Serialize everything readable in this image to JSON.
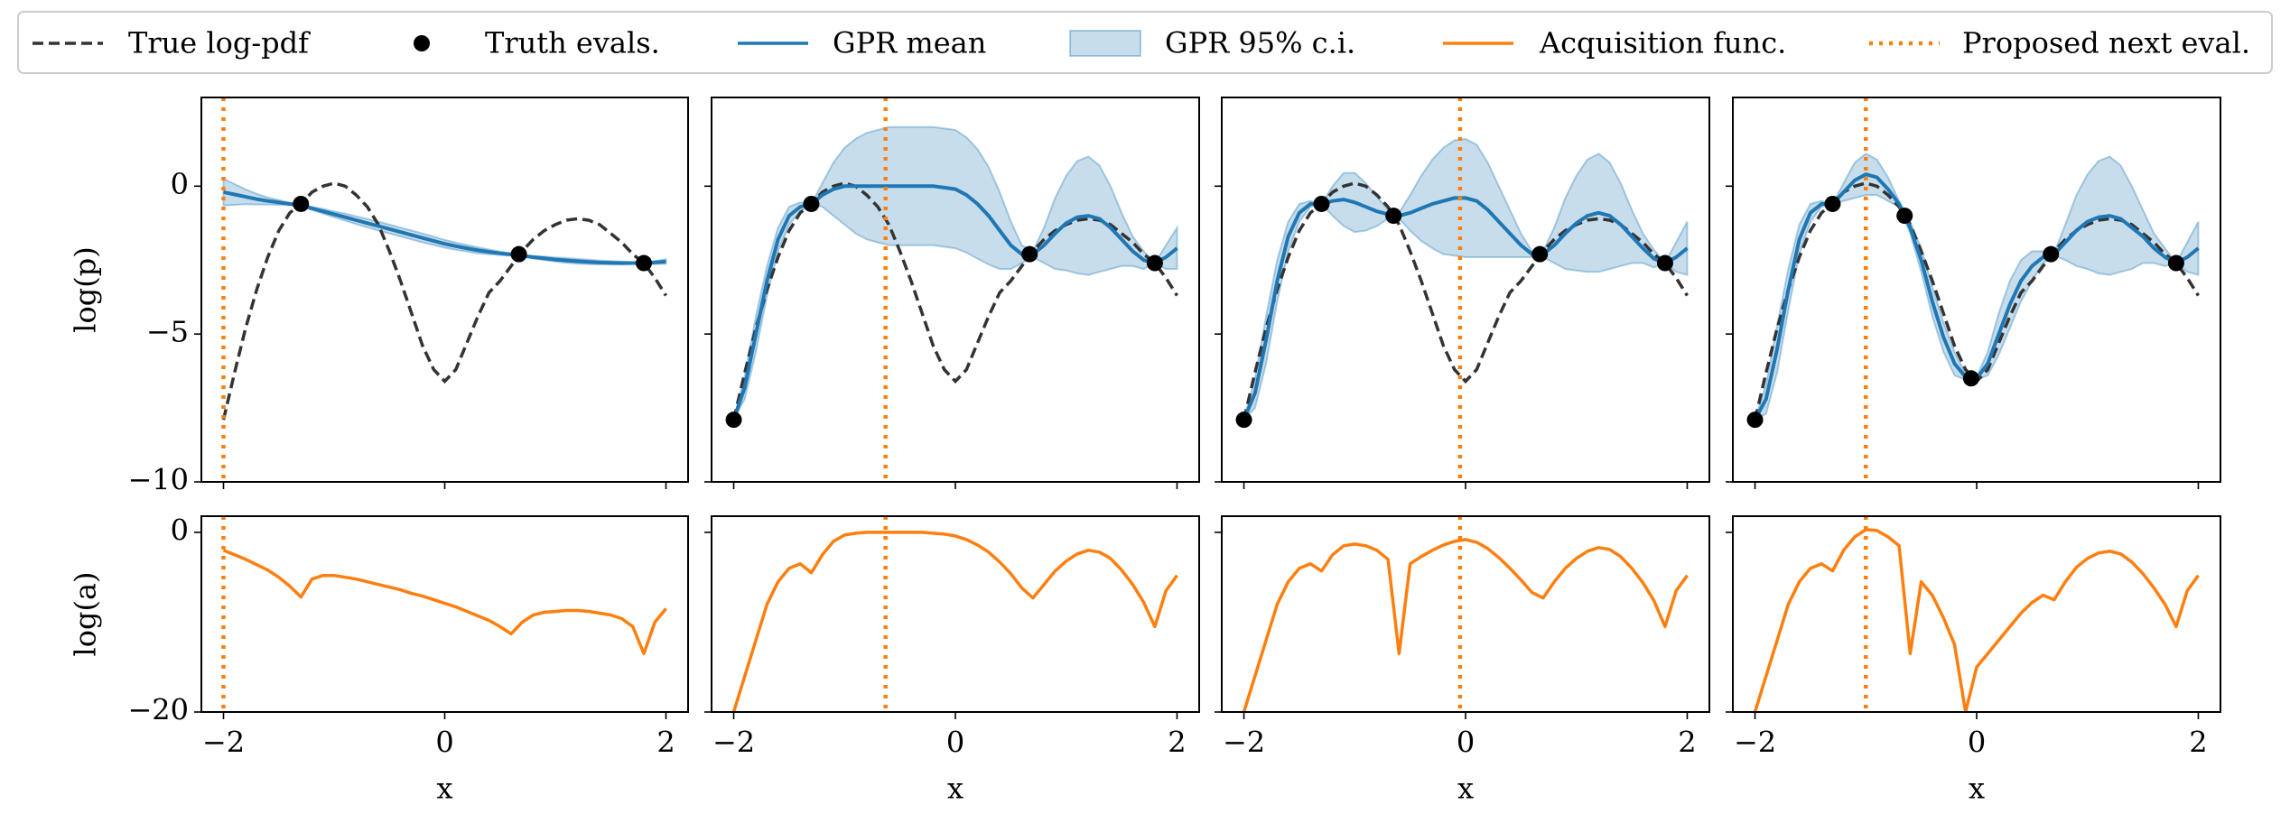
{
  "chart_data": {
    "type": "bayes-opt-grid",
    "legend": [
      {
        "name": "True log-pdf",
        "color": "#333333",
        "style": "dashed"
      },
      {
        "name": "Truth evals.",
        "color": "#000000",
        "style": "dot"
      },
      {
        "name": "GPR mean",
        "color": "#1f77b4",
        "style": "line"
      },
      {
        "name": "GPR 95% c.i.",
        "color": "#1f77b4",
        "style": "patch"
      },
      {
        "name": "Acquisition func.",
        "color": "#ff7f0e",
        "style": "line"
      },
      {
        "name": "Proposed next eval.",
        "color": "#ff7f0e",
        "style": "dotted"
      }
    ],
    "xlabel": "x",
    "xlim": [
      -2.2,
      2.2
    ],
    "xticks": [
      {
        "value": -2,
        "label": "−2"
      },
      0,
      2
    ],
    "top": {
      "ylabel": "log(p)",
      "ylim": [
        -10,
        3
      ],
      "yticks": [
        {
          "value": -10,
          "label": "−10"
        },
        {
          "value": -5,
          "label": "−5"
        },
        0
      ]
    },
    "bottom": {
      "ylabel": "log(a)",
      "ylim": [
        -20,
        1.8
      ],
      "yticks": [
        {
          "value": -20,
          "label": "−20"
        },
        0
      ]
    },
    "x": [
      -2,
      -1.9,
      -1.8,
      -1.7,
      -1.6,
      -1.5,
      -1.4,
      -1.3,
      -1.2,
      -1.1,
      -1,
      -0.9,
      -0.8,
      -0.7,
      -0.6,
      -0.5,
      -0.4,
      -0.3,
      -0.2,
      -0.1,
      0,
      0.1,
      0.2,
      0.3,
      0.4,
      0.5,
      0.6,
      0.7,
      0.8,
      0.9,
      1,
      1.1,
      1.2,
      1.3,
      1.4,
      1.5,
      1.6,
      1.7,
      1.8,
      1.9,
      2
    ],
    "true_logpdf": [
      -7.9,
      -6.3,
      -4.8,
      -3.5,
      -2.4,
      -1.5,
      -0.9,
      -0.6,
      -0.2,
      0,
      0.1,
      0,
      -0.3,
      -0.7,
      -1.3,
      -2.2,
      -3.2,
      -4.3,
      -5.4,
      -6.2,
      -6.6,
      -6.2,
      -5.3,
      -4.4,
      -3.6,
      -3.2,
      -2.7,
      -2.2,
      -1.8,
      -1.5,
      -1.3,
      -1.15,
      -1.1,
      -1.15,
      -1.3,
      -1.6,
      -1.9,
      -2.3,
      -2.6,
      -3.1,
      -3.7
    ],
    "panels": [
      {
        "evals_x": [
          -1.3,
          0.67,
          1.8
        ],
        "evals_y": [
          -0.6,
          -2.3,
          -2.6
        ],
        "next_x": -2,
        "gpr_mean": [
          -0.2,
          -0.28,
          -0.36,
          -0.44,
          -0.5,
          -0.55,
          -0.6,
          -0.65,
          -0.75,
          -0.85,
          -0.95,
          -1.05,
          -1.15,
          -1.25,
          -1.35,
          -1.45,
          -1.55,
          -1.65,
          -1.75,
          -1.85,
          -1.95,
          -2.03,
          -2.1,
          -2.17,
          -2.22,
          -2.27,
          -2.31,
          -2.35,
          -2.4,
          -2.44,
          -2.48,
          -2.51,
          -2.54,
          -2.56,
          -2.58,
          -2.59,
          -2.6,
          -2.6,
          -2.6,
          -2.58,
          -2.55
        ],
        "gpr_ci_halfwidth": [
          0.45,
          0.35,
          0.25,
          0.18,
          0.12,
          0.08,
          0.04,
          0.02,
          0.05,
          0.08,
          0.1,
          0.12,
          0.13,
          0.14,
          0.15,
          0.15,
          0.15,
          0.15,
          0.15,
          0.14,
          0.13,
          0.12,
          0.11,
          0.1,
          0.08,
          0.06,
          0.04,
          0.02,
          0.04,
          0.06,
          0.07,
          0.08,
          0.08,
          0.08,
          0.07,
          0.06,
          0.05,
          0.03,
          0.02,
          0.05,
          0.08
        ],
        "acquisition": [
          -2,
          -2.5,
          -3,
          -3.6,
          -4.2,
          -5,
          -6,
          -7.2,
          -5.2,
          -4.8,
          -4.8,
          -5,
          -5.2,
          -5.5,
          -5.8,
          -6.1,
          -6.4,
          -6.8,
          -7.1,
          -7.5,
          -7.9,
          -8.3,
          -8.8,
          -9.3,
          -9.8,
          -10.5,
          -11.3,
          -10,
          -9.2,
          -8.9,
          -8.8,
          -8.7,
          -8.7,
          -8.8,
          -9,
          -9.2,
          -9.6,
          -10.5,
          -13.5,
          -10,
          -8.5
        ]
      },
      {
        "evals_x": [
          -2,
          -1.3,
          0.67,
          1.8
        ],
        "evals_y": [
          -7.9,
          -0.6,
          -2.3,
          -2.6
        ],
        "next_x": -0.63,
        "gpr_mean": [
          -7.9,
          -6.8,
          -5,
          -3.2,
          -1.8,
          -1,
          -0.7,
          -0.6,
          -0.3,
          -0.1,
          0,
          0,
          0,
          0,
          0,
          0,
          0,
          0,
          0,
          -0.05,
          -0.1,
          -0.3,
          -0.6,
          -1,
          -1.5,
          -2,
          -2.3,
          -2.3,
          -2,
          -1.6,
          -1.25,
          -1.05,
          -1,
          -1.1,
          -1.4,
          -1.8,
          -2.2,
          -2.5,
          -2.6,
          -2.4,
          -2.1
        ],
        "gpr_ci_halfwidth": [
          0,
          0.4,
          0.6,
          0.5,
          0.4,
          0.3,
          0.15,
          0,
          0.4,
          0.9,
          1.3,
          1.6,
          1.8,
          1.9,
          2,
          2,
          2,
          2,
          2,
          2,
          2,
          1.95,
          1.85,
          1.65,
          1.3,
          0.8,
          0.3,
          0.1,
          0.6,
          1.2,
          1.6,
          1.9,
          2,
          1.8,
          1.4,
          0.9,
          0.5,
          0.3,
          0,
          0.4,
          0.7
        ],
        "acquisition": [
          -20,
          -16,
          -12,
          -8,
          -5.5,
          -4,
          -3.5,
          -4.5,
          -2.5,
          -1,
          -0.3,
          -0.1,
          0,
          0,
          0,
          0,
          0,
          0,
          -0.1,
          -0.2,
          -0.4,
          -0.8,
          -1.4,
          -2.2,
          -3.3,
          -4.6,
          -6.2,
          -7.3,
          -5.8,
          -4.3,
          -3.2,
          -2.4,
          -2,
          -2.2,
          -2.9,
          -4.2,
          -5.8,
          -7.8,
          -10.5,
          -6.5,
          -4.8
        ]
      },
      {
        "evals_x": [
          -2,
          -1.3,
          -0.65,
          0.67,
          1.8
        ],
        "evals_y": [
          -7.9,
          -0.6,
          -1,
          -2.3,
          -2.6
        ],
        "next_x": -0.05,
        "gpr_mean": [
          -7.9,
          -7,
          -5.2,
          -3.2,
          -1.7,
          -0.9,
          -0.6,
          -0.6,
          -0.5,
          -0.45,
          -0.55,
          -0.7,
          -0.85,
          -0.95,
          -1,
          -0.9,
          -0.75,
          -0.6,
          -0.5,
          -0.4,
          -0.4,
          -0.5,
          -0.8,
          -1.2,
          -1.6,
          -2,
          -2.3,
          -2.3,
          -2,
          -1.6,
          -1.25,
          -1,
          -0.9,
          -1,
          -1.3,
          -1.7,
          -2.1,
          -2.45,
          -2.6,
          -2.4,
          -2.1
        ],
        "gpr_ci_halfwidth": [
          0,
          0.5,
          0.8,
          0.7,
          0.5,
          0.3,
          0.1,
          0,
          0.5,
          0.9,
          1,
          0.8,
          0.5,
          0.15,
          0.1,
          0.6,
          1.1,
          1.5,
          1.8,
          1.95,
          2,
          1.9,
          1.6,
          1.2,
          0.8,
          0.4,
          0.1,
          0.1,
          0.6,
          1.2,
          1.6,
          1.9,
          2,
          1.8,
          1.4,
          0.9,
          0.5,
          0.3,
          0,
          0.5,
          0.9
        ],
        "acquisition": [
          -20,
          -16,
          -12,
          -8,
          -5.5,
          -4,
          -3.5,
          -4.3,
          -2.5,
          -1.5,
          -1.3,
          -1.5,
          -2,
          -3,
          -13.5,
          -3.5,
          -2.7,
          -2,
          -1.4,
          -1,
          -0.8,
          -1.1,
          -1.8,
          -2.8,
          -4,
          -5.3,
          -6.7,
          -7.3,
          -5.5,
          -4,
          -2.9,
          -2.1,
          -1.7,
          -1.9,
          -2.7,
          -4,
          -5.6,
          -7.6,
          -10.5,
          -6.5,
          -4.8
        ]
      },
      {
        "evals_x": [
          -2,
          -1.3,
          -0.65,
          -0.05,
          0.67,
          1.8
        ],
        "evals_y": [
          -7.9,
          -0.6,
          -1,
          -6.5,
          -2.3,
          -2.6
        ],
        "next_x": -1,
        "gpr_mean": [
          -7.9,
          -7.2,
          -5.5,
          -3.5,
          -1.8,
          -0.9,
          -0.6,
          -0.6,
          -0.2,
          0.2,
          0.4,
          0.3,
          -0.1,
          -0.6,
          -1.4,
          -2.5,
          -3.9,
          -5.1,
          -6,
          -6.45,
          -6.5,
          -6,
          -5,
          -4,
          -3.2,
          -2.7,
          -2.4,
          -2.3,
          -1.9,
          -1.5,
          -1.2,
          -1.05,
          -1,
          -1.1,
          -1.4,
          -1.7,
          -2.1,
          -2.4,
          -2.6,
          -2.4,
          -2.1
        ],
        "gpr_ci_halfwidth": [
          0,
          0.5,
          0.8,
          0.7,
          0.5,
          0.3,
          0.1,
          0,
          0.3,
          0.6,
          0.7,
          0.6,
          0.4,
          0.1,
          0.2,
          0.4,
          0.5,
          0.5,
          0.4,
          0.1,
          0.05,
          0.4,
          0.7,
          0.8,
          0.7,
          0.5,
          0.2,
          0.05,
          0.6,
          1.2,
          1.6,
          1.9,
          2,
          1.8,
          1.4,
          0.9,
          0.5,
          0.3,
          0,
          0.5,
          0.9
        ],
        "acquisition": [
          -20,
          -16,
          -12,
          -8,
          -5.5,
          -4,
          -3.5,
          -4.3,
          -2,
          -0.5,
          0.3,
          0.2,
          -0.5,
          -1.5,
          -13.5,
          -5.5,
          -7,
          -9.5,
          -12.5,
          -20,
          -15,
          -13.5,
          -12,
          -10.5,
          -9,
          -7.8,
          -7,
          -7.5,
          -5.5,
          -3.9,
          -2.9,
          -2.3,
          -2.1,
          -2.4,
          -3.3,
          -4.6,
          -6.2,
          -8,
          -10.5,
          -6.5,
          -4.8
        ]
      }
    ]
  }
}
